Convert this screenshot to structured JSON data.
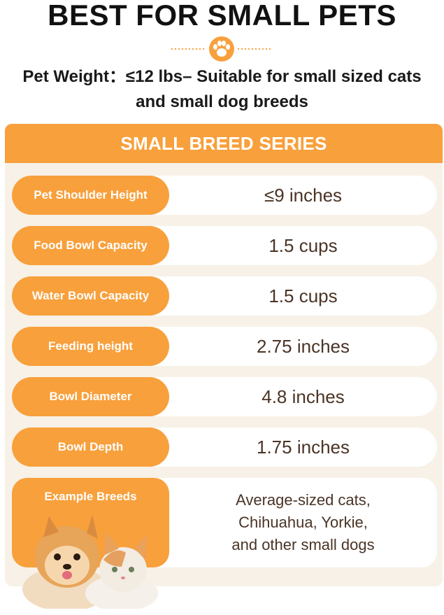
{
  "header": {
    "title": "BEST FOR SMALL PETS",
    "subtitle": "Pet Weight：≤12 lbs– Suitable for small sized cats and small dog breeds",
    "icon": "paw-icon"
  },
  "colors": {
    "accent": "#f8a03c",
    "panel_bg": "#f7f1e8",
    "value_text": "#4a3426"
  },
  "table": {
    "header": "SMALL BREED SERIES",
    "rows": [
      {
        "label": "Pet Shoulder Height",
        "value": "≤9 inches"
      },
      {
        "label": "Food Bowl Capacity",
        "value": "1.5 cups"
      },
      {
        "label": "Water Bowl Capacity",
        "value": "1.5 cups"
      },
      {
        "label": "Feeding height",
        "value": "2.75 inches"
      },
      {
        "label": "Bowl Diameter",
        "value": "4.8 inches"
      },
      {
        "label": "Bowl Depth",
        "value": "1.75 inches"
      },
      {
        "label": "Example Breeds",
        "value_lines": [
          "Average-sized cats,",
          "Chihuahua, Yorkie,",
          "and other small dogs"
        ]
      }
    ]
  }
}
